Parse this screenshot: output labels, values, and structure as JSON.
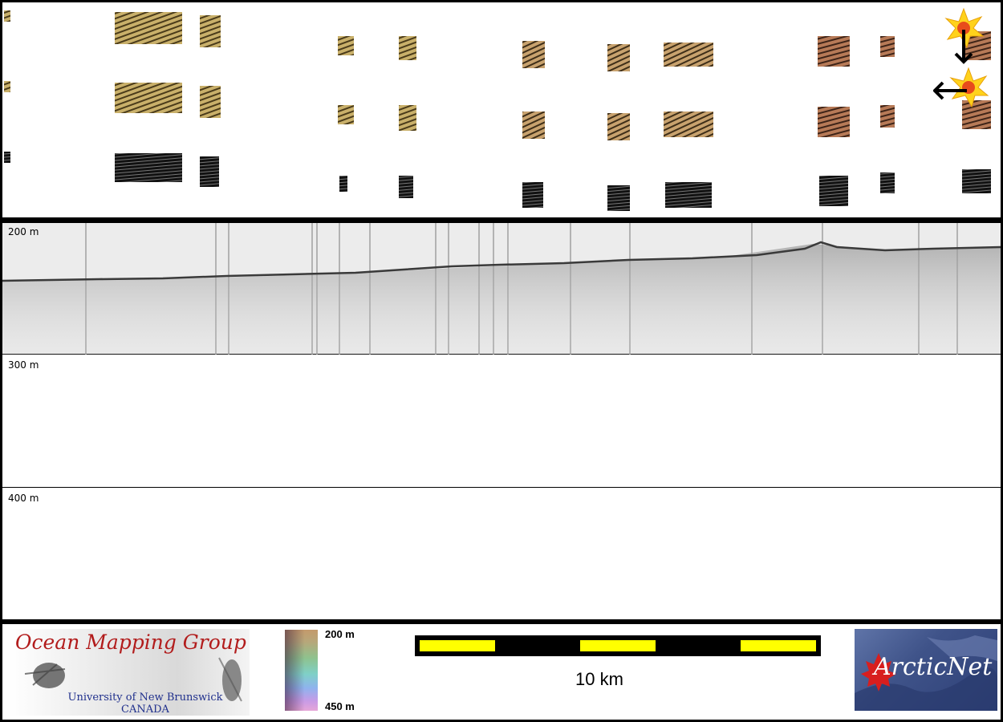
{
  "profile": {
    "depth_labels": [
      "200 m",
      "300 m",
      "400 m"
    ]
  },
  "legend": {
    "logo": {
      "title": "Ocean Mapping Group",
      "subtitle_line1": "University of New Brunswick",
      "subtitle_line2": "CANADA"
    },
    "colorbar": {
      "top_label": "200 m",
      "bottom_label": "450 m"
    },
    "scale": {
      "label": "10 km"
    },
    "partner_logo": {
      "text": "ArcticNet"
    }
  },
  "colors": {
    "frame": "#000000",
    "profile_band": "#ececec",
    "scale_bar_fill": "#ffff00",
    "logo_title": "#b21c1c",
    "logo_subtitle": "#1f2f8c",
    "arcticnet_bg": "#3f5389",
    "maple_leaf": "#d81e1e"
  },
  "icons": {
    "sun_icons": [
      "sun-illumination-north-icon",
      "sun-illumination-west-icon"
    ],
    "arrows": [
      "arrow-down-icon",
      "arrow-left-icon"
    ]
  }
}
